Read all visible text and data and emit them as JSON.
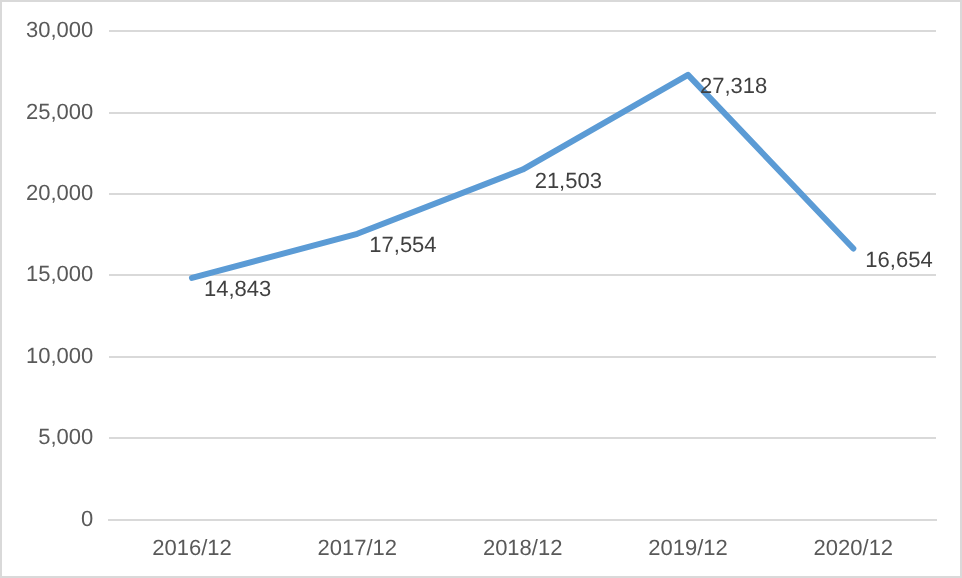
{
  "chart_data": {
    "type": "line",
    "categories": [
      "2016/12",
      "2017/12",
      "2018/12",
      "2019/12",
      "2020/12"
    ],
    "series": [
      {
        "color": "#5b9bd5",
        "values": [
          14843,
          17554,
          21503,
          27318,
          16654
        ],
        "value_labels": [
          "14,843",
          "17,554",
          "21,503",
          "27,318",
          "16,654"
        ]
      }
    ],
    "ylim": [
      0,
      30000
    ],
    "yticks": [
      0,
      {
        "value": 5000,
        "label": "5,000"
      },
      {
        "value": 10000,
        "label": "10,000"
      },
      {
        "value": 15000,
        "label": "15,000"
      },
      {
        "value": 20000,
        "label": "20,000"
      },
      {
        "value": 25000,
        "label": "25,000"
      },
      {
        "value": 30000,
        "label": "30,000"
      }
    ],
    "grid": "y",
    "legend": false,
    "marker": "none",
    "line_style": "solid"
  }
}
